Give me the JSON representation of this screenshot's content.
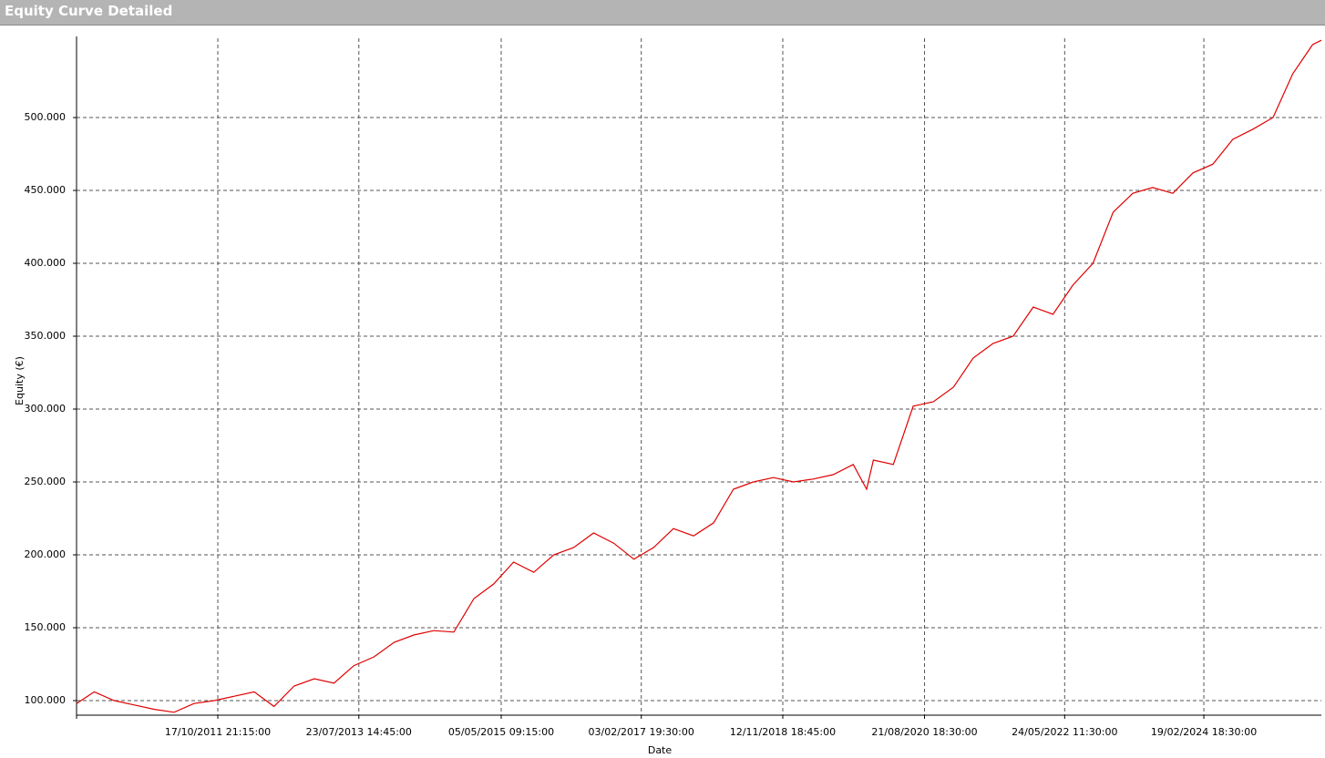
{
  "chart_data": {
    "type": "line",
    "title": "Equity Curve Detailed",
    "xlabel": "Date",
    "ylabel": "Equity (€)",
    "x": [
      "2010-01-10",
      "2010-04-01",
      "2010-07-01",
      "2010-10-01",
      "2011-01-01",
      "2011-04-01",
      "2011-07-01",
      "2011-10-01",
      "2012-01-01",
      "2012-04-01",
      "2012-07-01",
      "2012-10-01",
      "2013-01-01",
      "2013-04-01",
      "2013-07-01",
      "2013-10-01",
      "2014-01-01",
      "2014-04-01",
      "2014-07-01",
      "2014-10-01",
      "2015-01-01",
      "2015-04-01",
      "2015-07-01",
      "2015-10-01",
      "2016-01-01",
      "2016-04-01",
      "2016-07-01",
      "2016-10-01",
      "2017-01-01",
      "2017-04-01",
      "2017-07-01",
      "2017-10-01",
      "2018-01-01",
      "2018-04-01",
      "2018-07-01",
      "2018-10-01",
      "2019-01-01",
      "2019-04-01",
      "2019-07-01",
      "2019-10-01",
      "2019-12-01",
      "2020-01-01",
      "2020-04-01",
      "2020-07-01",
      "2020-10-01",
      "2021-01-01",
      "2021-04-01",
      "2021-07-01",
      "2021-10-01",
      "2022-01-01",
      "2022-04-01",
      "2022-07-01",
      "2022-10-01",
      "2023-01-01",
      "2023-04-01",
      "2023-07-01",
      "2023-10-01",
      "2024-01-01",
      "2024-04-01",
      "2024-07-01",
      "2024-10-01",
      "2025-01-01",
      "2025-04-01",
      "2025-07-01",
      "2025-08-10"
    ],
    "series": [
      {
        "name": "Equity",
        "color": "#e00000",
        "values": [
          98000,
          106000,
          100000,
          97000,
          94000,
          92000,
          98000,
          100000,
          103000,
          106000,
          96000,
          110000,
          115000,
          112000,
          124000,
          130000,
          140000,
          145000,
          148000,
          147000,
          170000,
          180000,
          195000,
          188000,
          200000,
          205000,
          215000,
          208000,
          197000,
          205000,
          218000,
          213000,
          222000,
          245000,
          250000,
          253000,
          250000,
          252000,
          255000,
          262000,
          245000,
          265000,
          262000,
          302000,
          305000,
          315000,
          335000,
          345000,
          350000,
          370000,
          365000,
          385000,
          400000,
          435000,
          448000,
          452000,
          448000,
          462000,
          468000,
          485000,
          492000,
          500000,
          530000,
          550000,
          553000
        ]
      }
    ],
    "xlim": [
      "2010-01-10",
      "2025-08-10"
    ],
    "xticks": [
      {
        "value": "2011-10-17T21:15:00",
        "label": "17/10/2011 21:15:00"
      },
      {
        "value": "2013-07-23T14:45:00",
        "label": "23/07/2013 14:45:00"
      },
      {
        "value": "2015-05-05T09:15:00",
        "label": "05/05/2015 09:15:00"
      },
      {
        "value": "2017-02-03T19:30:00",
        "label": "03/02/2017 19:30:00"
      },
      {
        "value": "2018-11-12T18:45:00",
        "label": "12/11/2018 18:45:00"
      },
      {
        "value": "2020-08-21T18:30:00",
        "label": "21/08/2020 18:30:00"
      },
      {
        "value": "2022-05-24T11:30:00",
        "label": "24/05/2022 11:30:00"
      },
      {
        "value": "2024-02-19T18:30:00",
        "label": "19/02/2024 18:30:00"
      }
    ],
    "ylim": [
      90000,
      554400
    ],
    "yticks": [
      {
        "value": 100000,
        "label": "100.000"
      },
      {
        "value": 150000,
        "label": "150.000"
      },
      {
        "value": 200000,
        "label": "200.000"
      },
      {
        "value": 250000,
        "label": "250.000"
      },
      {
        "value": 300000,
        "label": "300.000"
      },
      {
        "value": 350000,
        "label": "350.000"
      },
      {
        "value": 400000,
        "label": "400.000"
      },
      {
        "value": 450000,
        "label": "450.000"
      },
      {
        "value": 500000,
        "label": "500.000"
      }
    ],
    "grid": true
  }
}
